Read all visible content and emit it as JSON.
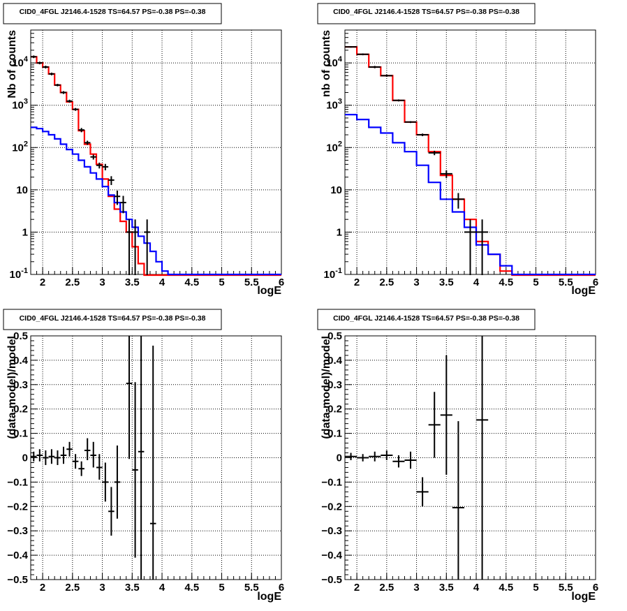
{
  "chart_data": [
    {
      "type": "line",
      "title": "CID0_4FGL J2146.4-1528 TS=64.57 PS=-0.38 PS=-0.38",
      "xlabel": "logE",
      "ylabel": "Nb of counts",
      "xlim": [
        1.8,
        6.0
      ],
      "ylim": [
        0.1,
        60000
      ],
      "yscale": "log",
      "grid": true,
      "xticks": [
        "2",
        "2.5",
        "3",
        "3.5",
        "4",
        "4.5",
        "5",
        "5.5",
        "6"
      ],
      "yticks": [
        "10^-1",
        "1",
        "10",
        "10^2",
        "10^3",
        "10^4"
      ],
      "bin_edges": [
        1.8,
        1.9,
        2.0,
        2.1,
        2.2,
        2.3,
        2.4,
        2.5,
        2.6,
        2.7,
        2.8,
        2.9,
        3.0,
        3.1,
        3.2,
        3.3,
        3.4,
        3.5,
        3.6,
        3.7,
        3.8,
        3.9,
        4.0,
        4.1,
        4.2,
        4.3,
        4.4,
        4.5,
        4.6,
        4.7,
        4.8,
        4.9,
        5.0,
        5.1,
        5.2,
        5.3,
        5.4,
        5.5,
        5.6,
        5.7,
        5.8,
        5.9,
        6.0
      ],
      "series": [
        {
          "name": "red",
          "color": "#ff0000",
          "values": [
            14000,
            10000,
            8000,
            5500,
            3000,
            2000,
            1200,
            800,
            250,
            120,
            70,
            40,
            18,
            7,
            3.5,
            1.8,
            1.0,
            0.45,
            0.18,
            0.08,
            0.08,
            0.08,
            0.08,
            0.08,
            0.08,
            0.08,
            0.08,
            0.08,
            0.08,
            0.08,
            0.08,
            0.08,
            0.08,
            0.08,
            0.08,
            0.08,
            0.08,
            0.08,
            0.08,
            0.08,
            0.08,
            0.08
          ]
        },
        {
          "name": "blue",
          "color": "#0000ff",
          "values": [
            300,
            280,
            240,
            200,
            160,
            120,
            90,
            70,
            50,
            35,
            25,
            18,
            12,
            7.5,
            5,
            3,
            2,
            1.3,
            0.8,
            0.55,
            0.35,
            0.2,
            0.12,
            0.1,
            0.1,
            0.1,
            0.1,
            0.1,
            0.1,
            0.1,
            0.1,
            0.1,
            0.1,
            0.1,
            0.1,
            0.1,
            0.1,
            0.1,
            0.1,
            0.1,
            0.1,
            0.1
          ]
        }
      ],
      "points": [
        {
          "x": 1.85,
          "xerr": 0.05,
          "y": 14000,
          "ylo": 13000,
          "yhi": 15000
        },
        {
          "x": 1.95,
          "xerr": 0.05,
          "y": 10000,
          "ylo": 9300,
          "yhi": 10700
        },
        {
          "x": 2.05,
          "xerr": 0.05,
          "y": 8000,
          "ylo": 7400,
          "yhi": 8600
        },
        {
          "x": 2.15,
          "xerr": 0.05,
          "y": 5500,
          "ylo": 5100,
          "yhi": 5900
        },
        {
          "x": 2.25,
          "xerr": 0.05,
          "y": 3000,
          "ylo": 2800,
          "yhi": 3200
        },
        {
          "x": 2.35,
          "xerr": 0.05,
          "y": 2000,
          "ylo": 1850,
          "yhi": 2150
        },
        {
          "x": 2.45,
          "xerr": 0.05,
          "y": 1250,
          "ylo": 1150,
          "yhi": 1350
        },
        {
          "x": 2.55,
          "xerr": 0.05,
          "y": 800,
          "ylo": 740,
          "yhi": 860
        },
        {
          "x": 2.65,
          "xerr": 0.05,
          "y": 260,
          "ylo": 230,
          "yhi": 290
        },
        {
          "x": 2.75,
          "xerr": 0.05,
          "y": 130,
          "ylo": 115,
          "yhi": 145
        },
        {
          "x": 2.85,
          "xerr": 0.05,
          "y": 60,
          "ylo": 52,
          "yhi": 68
        },
        {
          "x": 2.95,
          "xerr": 0.05,
          "y": 38,
          "ylo": 32,
          "yhi": 44
        },
        {
          "x": 3.05,
          "xerr": 0.05,
          "y": 35,
          "ylo": 29,
          "yhi": 41
        },
        {
          "x": 3.15,
          "xerr": 0.05,
          "y": 17,
          "ylo": 13,
          "yhi": 21
        },
        {
          "x": 3.25,
          "xerr": 0.05,
          "y": 7,
          "ylo": 4.4,
          "yhi": 9.6
        },
        {
          "x": 3.35,
          "xerr": 0.05,
          "y": 5,
          "ylo": 2.8,
          "yhi": 7.2
        },
        {
          "x": 3.45,
          "xerr": 0.05,
          "y": 1,
          "ylo": 0.05,
          "yhi": 2.0
        },
        {
          "x": 3.55,
          "xerr": 0.05,
          "y": 1,
          "ylo": 0.05,
          "yhi": 2.0
        },
        {
          "x": 3.75,
          "xerr": 0.05,
          "y": 1,
          "ylo": 0.05,
          "yhi": 2.0
        }
      ]
    },
    {
      "type": "line",
      "title": "CID0_4FGL J2146.4-1528 TS=64.57 PS=-0.38 PS=-0.38",
      "xlabel": "logE",
      "ylabel": "nb of counts",
      "xlim": [
        1.8,
        6.0
      ],
      "ylim": [
        0.1,
        60000
      ],
      "yscale": "log",
      "grid": true,
      "xticks": [
        "2",
        "2.5",
        "3",
        "3.5",
        "4",
        "4.5",
        "5",
        "5.5",
        "6"
      ],
      "yticks": [
        "10^-1",
        "1",
        "10",
        "10^2",
        "10^3",
        "10^4"
      ],
      "bin_edges": [
        1.8,
        2.0,
        2.2,
        2.4,
        2.6,
        2.8,
        3.0,
        3.2,
        3.4,
        3.6,
        3.8,
        4.0,
        4.2,
        4.4,
        4.6,
        4.8,
        5.0,
        5.2,
        5.4,
        5.6,
        5.8,
        6.0
      ],
      "series": [
        {
          "name": "red",
          "color": "#ff0000",
          "values": [
            24000,
            16000,
            8000,
            5000,
            1300,
            400,
            200,
            80,
            22,
            6,
            2,
            0.6,
            0.3,
            0.12,
            0.08,
            0.08,
            0.08,
            0.08,
            0.08,
            0.08,
            0.08
          ]
        },
        {
          "name": "blue",
          "color": "#0000ff",
          "values": [
            600,
            460,
            300,
            220,
            130,
            80,
            38,
            15,
            6,
            3,
            1.3,
            0.5,
            0.3,
            0.16,
            0.1,
            0.1,
            0.1,
            0.1,
            0.1,
            0.1,
            0.1
          ]
        }
      ],
      "points": [
        {
          "x": 1.9,
          "xerr": 0.1,
          "y": 24000,
          "ylo": 23000,
          "yhi": 25000
        },
        {
          "x": 2.1,
          "xerr": 0.1,
          "y": 16000,
          "ylo": 15200,
          "yhi": 16800
        },
        {
          "x": 2.3,
          "xerr": 0.1,
          "y": 8000,
          "ylo": 7500,
          "yhi": 8500
        },
        {
          "x": 2.5,
          "xerr": 0.1,
          "y": 5000,
          "ylo": 4700,
          "yhi": 5300
        },
        {
          "x": 2.7,
          "xerr": 0.1,
          "y": 1300,
          "ylo": 1230,
          "yhi": 1370
        },
        {
          "x": 2.9,
          "xerr": 0.1,
          "y": 400,
          "ylo": 380,
          "yhi": 420
        },
        {
          "x": 3.1,
          "xerr": 0.1,
          "y": 200,
          "ylo": 186,
          "yhi": 214
        },
        {
          "x": 3.3,
          "xerr": 0.1,
          "y": 75,
          "ylo": 66,
          "yhi": 84
        },
        {
          "x": 3.5,
          "xerr": 0.1,
          "y": 24,
          "ylo": 19,
          "yhi": 29
        },
        {
          "x": 3.7,
          "xerr": 0.1,
          "y": 6,
          "ylo": 3.6,
          "yhi": 8.4
        },
        {
          "x": 3.9,
          "xerr": 0.1,
          "y": 1,
          "ylo": 0.05,
          "yhi": 2.0
        },
        {
          "x": 4.1,
          "xerr": 0.1,
          "y": 1,
          "ylo": 0.05,
          "yhi": 2.0
        }
      ]
    },
    {
      "type": "scatter",
      "title": "CID0_4FGL J2146.4-1528 TS=64.57 PS=-0.38 PS=-0.38",
      "xlabel": "logE",
      "ylabel": "(data-model)/model",
      "xlim": [
        1.8,
        6.0
      ],
      "ylim": [
        -0.5,
        0.5
      ],
      "yscale": "linear",
      "grid": true,
      "xticks": [
        "2",
        "2.5",
        "3",
        "3.5",
        "4",
        "4.5",
        "5",
        "5.5",
        "6"
      ],
      "yticks": [
        "−0.5",
        "−0.4",
        "−0.3",
        "−0.2",
        "−0.1",
        "0",
        "0.1",
        "0.2",
        "0.3",
        "0.4",
        "0.5"
      ],
      "points": [
        {
          "x": 1.85,
          "xerr": 0.05,
          "y": 0.005,
          "ylo": -0.015,
          "yhi": 0.025
        },
        {
          "x": 1.95,
          "xerr": 0.05,
          "y": 0.01,
          "ylo": -0.015,
          "yhi": 0.035
        },
        {
          "x": 2.05,
          "xerr": 0.05,
          "y": 0.0,
          "ylo": -0.03,
          "yhi": 0.03
        },
        {
          "x": 2.15,
          "xerr": 0.05,
          "y": 0.005,
          "ylo": -0.025,
          "yhi": 0.035
        },
        {
          "x": 2.25,
          "xerr": 0.05,
          "y": 0.0,
          "ylo": -0.03,
          "yhi": 0.03
        },
        {
          "x": 2.35,
          "xerr": 0.05,
          "y": 0.01,
          "ylo": -0.025,
          "yhi": 0.045
        },
        {
          "x": 2.45,
          "xerr": 0.05,
          "y": 0.035,
          "ylo": 0.005,
          "yhi": 0.065
        },
        {
          "x": 2.55,
          "xerr": 0.05,
          "y": -0.015,
          "ylo": -0.045,
          "yhi": 0.015
        },
        {
          "x": 2.65,
          "xerr": 0.05,
          "y": -0.045,
          "ylo": -0.075,
          "yhi": -0.015
        },
        {
          "x": 2.75,
          "xerr": 0.05,
          "y": 0.03,
          "ylo": -0.01,
          "yhi": 0.08
        },
        {
          "x": 2.85,
          "xerr": 0.05,
          "y": 0.01,
          "ylo": -0.04,
          "yhi": 0.065
        },
        {
          "x": 2.95,
          "xerr": 0.05,
          "y": -0.04,
          "ylo": -0.09,
          "yhi": 0.015
        },
        {
          "x": 3.05,
          "xerr": 0.05,
          "y": -0.1,
          "ylo": -0.18,
          "yhi": -0.02
        },
        {
          "x": 3.15,
          "xerr": 0.05,
          "y": -0.22,
          "ylo": -0.32,
          "yhi": -0.12
        },
        {
          "x": 3.25,
          "xerr": 0.05,
          "y": -0.1,
          "ylo": -0.25,
          "yhi": 0.05
        },
        {
          "x": 3.45,
          "xerr": 0.05,
          "y": 0.305,
          "ylo": -0.005,
          "yhi": 0.5
        },
        {
          "x": 3.55,
          "xerr": 0.05,
          "y": -0.05,
          "ylo": -0.41,
          "yhi": 0.31
        },
        {
          "x": 3.65,
          "xerr": 0.05,
          "y": 0.025,
          "ylo": -0.5,
          "yhi": 0.5
        },
        {
          "x": 3.85,
          "xerr": 0.05,
          "y": -0.27,
          "ylo": -0.5,
          "yhi": 0.46
        }
      ]
    },
    {
      "type": "scatter",
      "title": "CID0_4FGL J2146.4-1528 TS=64.57 PS=-0.38 PS=-0.38",
      "xlabel": "logE",
      "ylabel": "(data-model)/model",
      "xlim": [
        1.8,
        6.0
      ],
      "ylim": [
        -0.5,
        0.5
      ],
      "yscale": "linear",
      "grid": true,
      "xticks": [
        "2",
        "2.5",
        "3",
        "3.5",
        "4",
        "4.5",
        "5",
        "5.5",
        "6"
      ],
      "yticks": [
        "−0.5",
        "−0.4",
        "−0.3",
        "−0.2",
        "−0.1",
        "0",
        "0.1",
        "0.2",
        "0.3",
        "0.4",
        "0.5"
      ],
      "points": [
        {
          "x": 1.9,
          "xerr": 0.1,
          "y": 0.005,
          "ylo": -0.01,
          "yhi": 0.02
        },
        {
          "x": 2.1,
          "xerr": 0.1,
          "y": 0.0,
          "ylo": -0.015,
          "yhi": 0.015
        },
        {
          "x": 2.3,
          "xerr": 0.1,
          "y": 0.005,
          "ylo": -0.015,
          "yhi": 0.025
        },
        {
          "x": 2.5,
          "xerr": 0.1,
          "y": 0.01,
          "ylo": -0.01,
          "yhi": 0.03
        },
        {
          "x": 2.7,
          "xerr": 0.1,
          "y": -0.015,
          "ylo": -0.04,
          "yhi": 0.01
        },
        {
          "x": 2.9,
          "xerr": 0.1,
          "y": -0.01,
          "ylo": -0.045,
          "yhi": 0.025
        },
        {
          "x": 3.1,
          "xerr": 0.1,
          "y": -0.14,
          "ylo": -0.2,
          "yhi": -0.08
        },
        {
          "x": 3.3,
          "xerr": 0.1,
          "y": 0.135,
          "ylo": 0.0,
          "yhi": 0.27
        },
        {
          "x": 3.5,
          "xerr": 0.1,
          "y": 0.175,
          "ylo": -0.07,
          "yhi": 0.42
        },
        {
          "x": 3.7,
          "xerr": 0.1,
          "y": -0.205,
          "ylo": -0.5,
          "yhi": 0.15
        },
        {
          "x": 4.1,
          "xerr": 0.1,
          "y": 0.155,
          "ylo": -0.5,
          "yhi": 0.5
        }
      ]
    }
  ]
}
